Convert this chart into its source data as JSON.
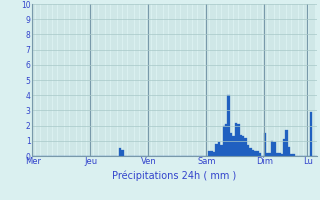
{
  "ylabel_values": [
    0,
    1,
    2,
    3,
    4,
    5,
    6,
    7,
    8,
    9,
    10
  ],
  "ylim": [
    0,
    10
  ],
  "bar_color": "#2060c0",
  "background_color": "#daf0f0",
  "grid_color": "#a8c8c8",
  "vert_line_color": "#7899aa",
  "axis_label_color": "#3344cc",
  "xlabel": "Précipitations 24h ( mm )",
  "day_labels": [
    "Mer",
    "Jeu",
    "Ven",
    "Sam",
    "Dim",
    "Lu"
  ],
  "day_positions": [
    0,
    24,
    48,
    72,
    96,
    114
  ],
  "bar_values": [
    0,
    0,
    0,
    0,
    0,
    0,
    0,
    0,
    0,
    0,
    0,
    0,
    0,
    0,
    0,
    0,
    0,
    0,
    0,
    0,
    0,
    0,
    0,
    0,
    0,
    0,
    0,
    0,
    0,
    0,
    0,
    0,
    0,
    0,
    0,
    0,
    0.5,
    0.4,
    0,
    0,
    0,
    0,
    0,
    0,
    0,
    0,
    0,
    0,
    0,
    0,
    0,
    0,
    0,
    0,
    0,
    0,
    0,
    0,
    0,
    0,
    0,
    0,
    0,
    0,
    0,
    0,
    0,
    0,
    0,
    0,
    0,
    0,
    0,
    0.3,
    0.3,
    0.25,
    0.8,
    0.9,
    0.7,
    2.0,
    2.1,
    4.0,
    1.5,
    1.3,
    2.2,
    2.1,
    1.4,
    1.3,
    1.2,
    0.7,
    0.5,
    0.4,
    0.3,
    0.3,
    0.2,
    0.0,
    1.5,
    0.2,
    0.2,
    1.0,
    0.9,
    0.2,
    0.2,
    0.1,
    1.1,
    1.7,
    0.6,
    0.1,
    0.1,
    0.0,
    0.0,
    0.0,
    0,
    0,
    0,
    2.9,
    0,
    0
  ]
}
